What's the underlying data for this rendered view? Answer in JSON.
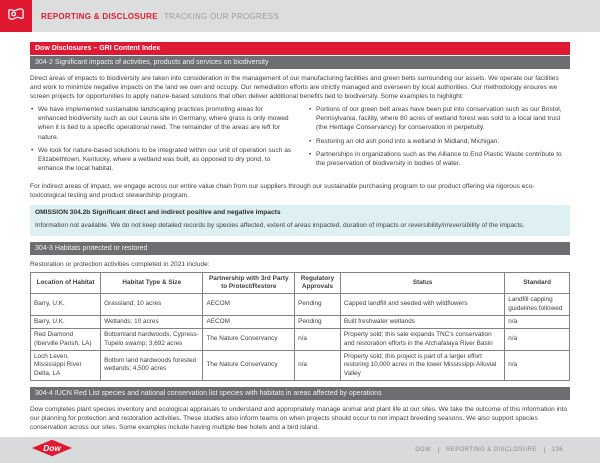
{
  "header": {
    "section_label": "REPORTING & DISCLOSURE",
    "subsection_label": "TRACKING OUR PROGRESS"
  },
  "content": {
    "title_bar": "Dow Disclosures – GRI Content Index",
    "s304_2": {
      "bar": "304-2 Significant impacts of activities, products and services on biodiversity",
      "intro": "Direct areas of impacts to biodiversity are taken into consideration in the management of our manufacturing facilities and green belts surrounding our assets. We operate our facilities and work to minimize negative impacts on the land we own and occupy. Our remediation efforts are strictly managed and overseen by local authorities. Our methodology ensures we screen projects for opportunities to apply nature-based solutions that often deliver additional benefits tied to biodiversity. Some examples to highlight:",
      "bullets_left": [
        "We have implemented sustainable landscaping practices promoting areas for enhanced biodiversity such as our Leuna site in Germany, where grass is only mowed when it is tied to a specific operational need. The remainder of the areas are left for nature.",
        "We look for nature-based solutions to be integrated within our unit of operation such as Elizabethtown, Kentucky, where a wetland was built, as opposed to dry pond, to enhance the local habitat."
      ],
      "bullets_right": [
        "Portions of our green belt areas have been put into conservation such as our Bristol, Pennsylvania, facility, where 80 acres of wetland forest was sold to a local land trust (the Heritage Conservancy) for conservation in perpetuity.",
        "Restoring an old ash pond into a wetland in Midland, Michigan.",
        "Partnerships in organizations such as the Alliance to End Plastic Waste contribute to the preservation of biodiversity in bodies of water."
      ],
      "outro": "For indirect areas of impact, we engage across our entire value chain from our suppliers through our sustainable purchasing program to our product offering via rigorous eco-toxicological testing and product stewardship program."
    },
    "omission_304_2b": {
      "heading": "OMISSION 304.2b Significant direct and indirect positive and negative impacts",
      "body": "Information not available. We do not keep detailed records by species affected, extent of areas impacted, duration of impacts or reversibility/irreversibility of the impacts."
    },
    "s304_3": {
      "bar": "304-3 Habitats protected or restored",
      "intro": "Restoration or protection activities completed in 2021 include:",
      "table": {
        "headers": [
          "Location of Habitat",
          "Habitat Type & Size",
          "Partnership with 3rd Party to Protect/Restore",
          "Regulatory Approvals",
          "Status",
          "Standard"
        ],
        "rows": [
          [
            "Barry, U.K.",
            "Grassland; 10 acres",
            "AECOM",
            "Pending",
            "Capped landfill and seeded with wildflowers",
            "Landfill capping guidelines followed"
          ],
          [
            "Barry, U.K.",
            "Wetlands; 10 acres",
            "AECOM",
            "Pending",
            "Built freshwater wetlands",
            "n/a"
          ],
          [
            "Red Diamond (Iberville Parish, LA)",
            "Bottomland hardwoods, Cypress-Tupelo swamp; 3,692 acres",
            "The Nature Conservancy",
            "n/a",
            "Property sold; this sale expands TNC's conservation and restoration efforts in the Atchafalaya River Basin",
            "n/a"
          ],
          [
            "Loch Leven, Mississippi River Delta, LA",
            "Bottom land hardwoods forested wetlands; 4,500 acres",
            "The Nature Conservancy",
            "n/a",
            "Property sold; this project is part of a larger effort restoring 10,000 acres in the lower Mississippi Alluvial Valley",
            "n/a"
          ]
        ]
      }
    },
    "s304_4": {
      "bar": "304-4 IUCN Red List species and national conservation list species with habitats in areas affected by operations",
      "body": "Dow completes plant species inventory and ecological appraisals to understand and appropriately manage animal and plant life at our sites. We take the outcome of this information into our planning for protection and restoration activities. These studies also inform teams on when projects should occur to not impact breeding seasons. We also support species conservation across our sites. Some examples include having multiple bee hotels and a bird island."
    },
    "omission_304_4": {
      "heading": "OMISSION 304-4 IUCN Red List species and national conservation list species with habitats in areas affected by operations",
      "body": "Information not available. We do not keep detailed records by level of extinction risk. We will continue to annually assess mechanisms to be able to report this information in the future."
    }
  },
  "footer": {
    "logo_text": "Dow",
    "brand_crumb": "DOW",
    "section_crumb": "REPORTING & DISCLOSURE",
    "page_number": "136"
  },
  "colors": {
    "dow_red": "#e01933",
    "bar_gray": "#6d6e71",
    "omission_bg": "#def0f1",
    "strip_bg": "#dcdddd"
  }
}
